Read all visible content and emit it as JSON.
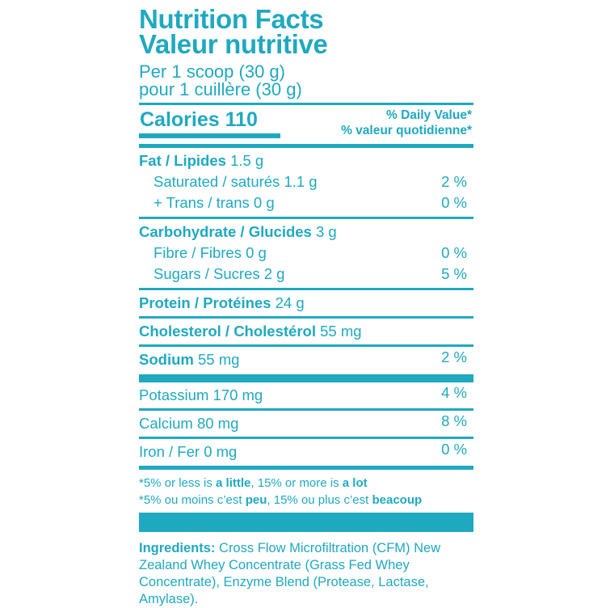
{
  "title_en": "Nutrition Facts",
  "title_fr": "Valeur nutritive",
  "serving_en": "Per 1 scoop (30 g)",
  "serving_fr": "pour 1 cuillère (30 g)",
  "calories": "Calories 110",
  "dv_en": "% Daily Value*",
  "dv_fr": "% valeur quotidienne*",
  "fat": {
    "label": "Fat / Lipides",
    "amount": " 1.5 g"
  },
  "saturated": {
    "label": "Saturated / saturés 1.1 g",
    "pct": "2 %"
  },
  "trans": {
    "label": "+ Trans / trans 0 g",
    "pct": "0 %"
  },
  "carb": {
    "label": "Carbohydrate / Glucides",
    "amount": " 3 g"
  },
  "fibre": {
    "label": "Fibre / Fibres 0 g",
    "pct": "0 %"
  },
  "sugars": {
    "label": "Sugars / Sucres 2 g",
    "pct": "5 %"
  },
  "protein": {
    "label": "Protein / Protéines",
    "amount": " 24 g"
  },
  "cholesterol": {
    "label": "Cholesterol / Cholestérol",
    "amount": " 55 mg"
  },
  "sodium": {
    "label": "Sodium",
    "amount": " 55 mg",
    "pct": "2 %"
  },
  "potassium": {
    "label": "Potassium 170 mg",
    "pct": "4 %"
  },
  "calcium": {
    "label": "Calcium 80 mg",
    "pct": "8 %"
  },
  "iron": {
    "label": "Iron / Fer 0 mg",
    "pct": "0 %"
  },
  "footnote_en": {
    "a": "*5% or less is ",
    "b": "a little",
    "c": ", 15% or more is ",
    "d": "a lot"
  },
  "footnote_fr": {
    "a": "*5% ou moins c’est ",
    "b": "peu",
    "c": ", 15% ou plus c’est ",
    "d": "beacoup"
  },
  "ingredients_label": "Ingredients:",
  "ingredients_text": " Cross Flow Microfiltration (CFM) New Zealand Whey Concentrate (Grass Fed Whey Concentrate), Enzyme Blend (Protease, Lactase, Amylase).",
  "colors": {
    "accent": "#1fa9c0"
  }
}
